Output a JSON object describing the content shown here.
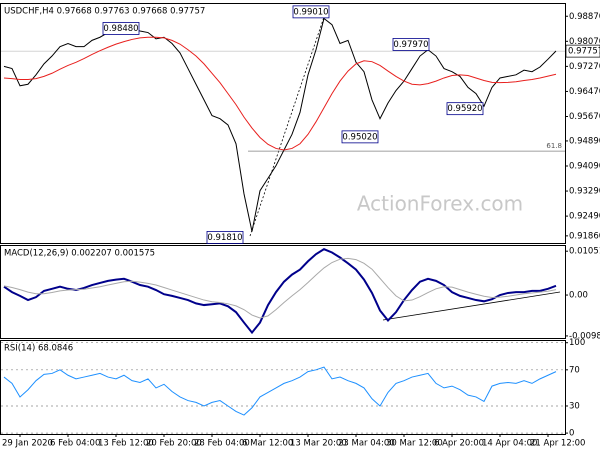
{
  "chart_data": [
    {
      "type": "line",
      "title": "USDCHF,H4  0.97668 0.97763 0.97668 0.97757",
      "watermark": "ActionForex.com",
      "categories": [
        null,
        null,
        "29 Jan 2020",
        null,
        null,
        null,
        null,
        null,
        "6 Feb 04:00",
        null,
        null,
        null,
        null,
        null,
        "13 Feb 12:00",
        null,
        null,
        null,
        null,
        null,
        "20 Feb 20:00",
        null,
        null,
        null,
        null,
        null,
        "28 Feb 04:00",
        null,
        null,
        null,
        null,
        null,
        "6 Mar 12:00",
        null,
        null,
        null,
        null,
        null,
        "13 Mar 20:00",
        null,
        null,
        null,
        null,
        null,
        "23 Mar 04:00",
        null,
        null,
        null,
        null,
        null,
        "30 Mar 12:00",
        null,
        null,
        null,
        null,
        null,
        "6 Apr 20:00",
        null,
        null,
        null,
        null,
        null,
        "14 Apr 04:00",
        null,
        null,
        null,
        null,
        null,
        "21 Apr 12:00",
        null
      ],
      "series": [
        {
          "color": "#000000",
          "values": [
            0.9727,
            0.972,
            0.9665,
            0.967,
            0.97,
            0.9735,
            0.976,
            0.979,
            0.98,
            0.979,
            0.979,
            0.981,
            0.982,
            0.9835,
            0.9845,
            0.984,
            0.9848,
            0.984,
            0.9835,
            0.9815,
            0.982,
            0.98,
            0.977,
            0.972,
            0.967,
            0.962,
            0.957,
            0.956,
            0.954,
            0.948,
            0.932,
            0.92,
            0.933,
            0.937,
            0.941,
            0.946,
            0.951,
            0.958,
            0.97,
            0.978,
            0.988,
            0.986,
            0.98,
            0.981,
            0.974,
            0.971,
            0.962,
            0.956,
            0.961,
            0.965,
            0.968,
            0.972,
            0.976,
            0.978,
            0.976,
            0.972,
            0.971,
            0.9695,
            0.966,
            0.964,
            0.96,
            0.966,
            0.969,
            0.9695,
            0.97,
            0.9715,
            0.971,
            0.9725,
            0.975,
            0.9776
          ]
        },
        {
          "color": "#e8201e",
          "values": [
            0.969,
            0.9688,
            0.9685,
            0.9685,
            0.9688,
            0.9695,
            0.9705,
            0.9718,
            0.973,
            0.974,
            0.9752,
            0.9765,
            0.9777,
            0.9788,
            0.9798,
            0.9806,
            0.9813,
            0.9818,
            0.982,
            0.982,
            0.9818,
            0.981,
            0.9798,
            0.978,
            0.976,
            0.9735,
            0.9705,
            0.9675,
            0.964,
            0.9605,
            0.9565,
            0.953,
            0.95,
            0.9478,
            0.9465,
            0.946,
            0.9465,
            0.948,
            0.951,
            0.955,
            0.9595,
            0.964,
            0.968,
            0.9712,
            0.9735,
            0.9745,
            0.9742,
            0.973,
            0.9712,
            0.9695,
            0.968,
            0.967,
            0.9668,
            0.9672,
            0.968,
            0.969,
            0.9698,
            0.97,
            0.9698,
            0.969,
            0.9682,
            0.9676,
            0.9675,
            0.9676,
            0.9678,
            0.9682,
            0.9685,
            0.969,
            0.9696,
            0.9702
          ]
        }
      ],
      "ylim": [
        0.91632,
        0.99293
      ],
      "yticks": [
        {
          "value": 0.9887,
          "label": "0.98870"
        },
        {
          "value": 0.9807,
          "label": "0.98070"
        },
        {
          "value": 0.9727,
          "label": "0.97270"
        },
        {
          "value": 0.9647,
          "label": "0.96470"
        },
        {
          "value": 0.9567,
          "label": "0.95670"
        },
        {
          "value": 0.9489,
          "label": "0.94890"
        },
        {
          "value": 0.9409,
          "label": "0.94090"
        },
        {
          "value": 0.9329,
          "label": "0.93290"
        },
        {
          "value": 0.9249,
          "label": "0.92490"
        },
        {
          "value": 0.9186,
          "label": "0.91860"
        }
      ],
      "last_price": 0.97757,
      "level": {
        "label": "61.8",
        "value": 0.94565
      },
      "annotations": [
        {
          "label": "0.98480",
          "value": 0.9848
        },
        {
          "label": "0.99010",
          "value": 0.9901
        },
        {
          "label": "0.97970",
          "value": 0.9797
        },
        {
          "label": "0.95020",
          "value": 0.9502
        },
        {
          "label": "0.95920",
          "value": 0.9592
        },
        {
          "label": "0.91810",
          "value": 0.9181
        }
      ],
      "grid": false
    },
    {
      "type": "line",
      "title": "MACD(12,26,9) 0.002207 0.001575",
      "series": [
        {
          "color": "#00008b",
          "values": [
            0.002,
            0.0007,
            -0.0002,
            -0.0012,
            -0.0005,
            0.001,
            0.0015,
            0.002,
            0.0015,
            0.0012,
            0.0017,
            0.0024,
            0.0029,
            0.0034,
            0.0037,
            0.0039,
            0.0032,
            0.0024,
            0.002,
            0.0012,
            0.0002,
            -0.0002,
            -0.0007,
            -0.0012,
            -0.002,
            -0.0024,
            -0.0022,
            -0.002,
            -0.0027,
            -0.0041,
            -0.0066,
            -0.009,
            -0.0066,
            -0.0024,
            0.0007,
            0.0032,
            0.0049,
            0.0061,
            0.0081,
            0.0098,
            0.011,
            0.0102,
            0.009,
            0.0076,
            0.0061,
            0.0037,
            0.0005,
            -0.0037,
            -0.0061,
            -0.0041,
            -0.0012,
            0.0012,
            0.0032,
            0.0039,
            0.0034,
            0.0024,
            0.0007,
            -0.0002,
            -0.0007,
            -0.0012,
            -0.0015,
            -0.001,
            0,
            0.0005,
            0.0007,
            0.0007,
            0.001,
            0.001,
            0.0015,
            0.0022
          ]
        },
        {
          "color": "#a9a9a9",
          "values": [
            0.0022,
            0.0018,
            0.0013,
            0.0007,
            0.0003,
            0.0003,
            0.0006,
            0.001,
            0.0012,
            0.0013,
            0.0014,
            0.0017,
            0.002,
            0.0024,
            0.0028,
            0.0032,
            0.0033,
            0.0031,
            0.0028,
            0.0024,
            0.0018,
            0.0012,
            0.0006,
            0,
            -0.0006,
            -0.0012,
            -0.0016,
            -0.0018,
            -0.0021,
            -0.0026,
            -0.0035,
            -0.0048,
            -0.0055,
            -0.005,
            -0.0035,
            -0.0018,
            -0.0002,
            0.0013,
            0.003,
            0.0048,
            0.0065,
            0.0078,
            0.0086,
            0.0088,
            0.0085,
            0.0076,
            0.0062,
            0.004,
            0.0018,
            -0.0002,
            -0.0014,
            -0.0012,
            -0.0004,
            0.0006,
            0.0015,
            0.002,
            0.0019,
            0.0013,
            0.0007,
            0.0002,
            -0.0003,
            -0.0006,
            -0.0005,
            -0.0003,
            0,
            0.0003,
            0.0005,
            0.0007,
            0.0009,
            0.0013
          ]
        }
      ],
      "ylim": [
        -0.0103,
        0.012
      ],
      "yticks": [
        0.010513,
        {
          "value": 0,
          "label": "0.00"
        },
        -0.009804
      ],
      "grid": false
    },
    {
      "type": "line",
      "title": "RSI(14) 68.0846",
      "series": [
        {
          "color": "#1e90ff",
          "values": [
            62,
            55,
            40,
            48,
            58,
            65,
            66,
            70,
            64,
            60,
            62,
            64,
            66,
            62,
            60,
            64,
            58,
            56,
            60,
            50,
            54,
            46,
            40,
            36,
            34,
            30,
            34,
            36,
            30,
            24,
            20,
            28,
            40,
            45,
            50,
            55,
            58,
            62,
            68,
            70,
            73,
            60,
            62,
            58,
            55,
            50,
            38,
            30,
            45,
            55,
            58,
            62,
            64,
            66,
            55,
            50,
            52,
            48,
            42,
            40,
            35,
            52,
            55,
            56,
            55,
            58,
            55,
            60,
            64,
            68
          ]
        }
      ],
      "ylim": [
        -1,
        103
      ],
      "yticks": [
        100,
        70,
        30,
        0
      ],
      "grid": true
    }
  ]
}
